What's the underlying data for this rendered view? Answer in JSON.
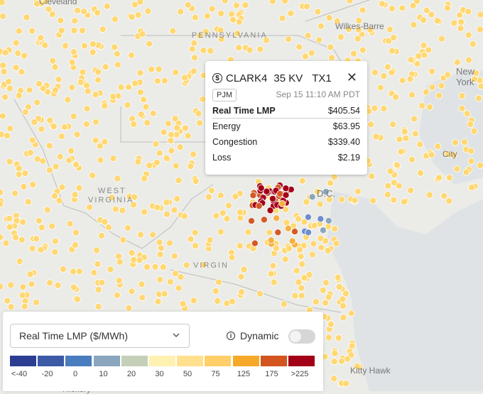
{
  "map": {
    "state_labels": [
      "PENNSYLVANIA",
      "WEST",
      "VIRGINIA",
      "VIRGIN"
    ],
    "city_labels": [
      "Wilkes-Barre",
      "New York",
      "City",
      "D.C.",
      "Kitty Hawk",
      "Hickory",
      "Cleveland"
    ],
    "node_colors": {
      "default": "#ffd873",
      "neg_low": "#6d8fc9",
      "neg_mid": "#8aa6be",
      "mid": "#f6b042",
      "high": "#d35a27",
      "max": "#a30018"
    }
  },
  "popup": {
    "node_name": "CLARK4",
    "voltage": "35 KV",
    "unit": "TX1",
    "iso": "PJM",
    "timestamp": "Sep 15 11:10 AM PDT",
    "rows": [
      {
        "label": "Real Time LMP",
        "value": "$405.54"
      },
      {
        "label": "Energy",
        "value": "$63.95"
      },
      {
        "label": "Congestion",
        "value": "$339.40"
      },
      {
        "label": "Loss",
        "value": "$2.19"
      }
    ],
    "icons": {
      "price": "dollar-icon",
      "close": "close-icon"
    }
  },
  "legend": {
    "metric_label": "Real Time LMP ($/MWh)",
    "dynamic_label": "Dynamic",
    "dynamic_enabled": false,
    "colors": [
      "#2c3e91",
      "#3c5aa6",
      "#4a7cc0",
      "#8aa6be",
      "#c5cfb8",
      "#fff1b0",
      "#ffe08e",
      "#ffd06a",
      "#f6a928",
      "#d3541f",
      "#a30018"
    ],
    "tick_labels": [
      "<-40",
      "-20",
      "0",
      "10",
      "20",
      "30",
      "50",
      "75",
      "125",
      "175",
      ">225"
    ]
  }
}
